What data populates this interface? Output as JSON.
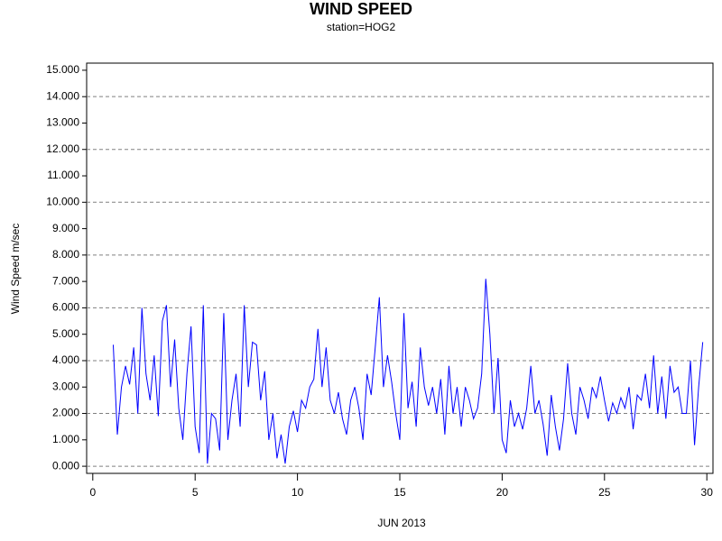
{
  "chart_data": {
    "type": "line",
    "title": "WIND SPEED",
    "subtitle": "station=HOG2",
    "x_label": "JUN 2013",
    "y_label": "Wind Speed m/sec",
    "xlim": [
      -0.3,
      30.3
    ],
    "xticks": [
      0,
      5,
      10,
      15,
      20,
      25,
      30
    ],
    "ylim": [
      -0.27,
      15.27
    ],
    "yticks": [
      {
        "value": 0,
        "label": "0.000"
      },
      {
        "value": 1,
        "label": "1.000"
      },
      {
        "value": 2,
        "label": "2.000"
      },
      {
        "value": 3,
        "label": "3.000"
      },
      {
        "value": 4,
        "label": "4.000"
      },
      {
        "value": 5,
        "label": "5.000"
      },
      {
        "value": 6,
        "label": "6.000"
      },
      {
        "value": 7,
        "label": "7.000"
      },
      {
        "value": 8,
        "label": "8.000"
      },
      {
        "value": 9,
        "label": "9.000"
      },
      {
        "value": 10,
        "label": "10.000"
      },
      {
        "value": 11,
        "label": "11.000"
      },
      {
        "value": 12,
        "label": "12.000"
      },
      {
        "value": 13,
        "label": "13.000"
      },
      {
        "value": 14,
        "label": "14.000"
      },
      {
        "value": 15,
        "label": "15.000"
      }
    ],
    "ygrid": [
      0,
      2,
      4,
      6,
      8,
      10,
      12,
      14
    ],
    "series": [
      {
        "name": "HOG2",
        "color": "#0000ff",
        "x": [
          1,
          1.2,
          1.4,
          1.6,
          1.8,
          2,
          2.2,
          2.4,
          2.6,
          2.8,
          3,
          3.2,
          3.4,
          3.6,
          3.8,
          4,
          4.2,
          4.4,
          4.6,
          4.8,
          5,
          5.2,
          5.4,
          5.6,
          5.8,
          6,
          6.2,
          6.4,
          6.6,
          6.8,
          7,
          7.2,
          7.4,
          7.6,
          7.8,
          8,
          8.2,
          8.4,
          8.6,
          8.8,
          9,
          9.2,
          9.4,
          9.6,
          9.8,
          10,
          10.2,
          10.4,
          10.6,
          10.8,
          11,
          11.2,
          11.4,
          11.6,
          11.8,
          12,
          12.2,
          12.4,
          12.6,
          12.8,
          13,
          13.2,
          13.4,
          13.6,
          13.8,
          14,
          14.2,
          14.4,
          14.6,
          14.8,
          15,
          15.2,
          15.4,
          15.6,
          15.8,
          16,
          16.2,
          16.4,
          16.6,
          16.8,
          17,
          17.2,
          17.4,
          17.6,
          17.8,
          18,
          18.2,
          18.4,
          18.6,
          18.8,
          19,
          19.2,
          19.4,
          19.6,
          19.8,
          20,
          20.2,
          20.4,
          20.6,
          20.8,
          21,
          21.2,
          21.4,
          21.6,
          21.8,
          22,
          22.2,
          22.4,
          22.6,
          22.8,
          23,
          23.2,
          23.4,
          23.6,
          23.8,
          24,
          24.2,
          24.4,
          24.6,
          24.8,
          25,
          25.2,
          25.4,
          25.6,
          25.8,
          26,
          26.2,
          26.4,
          26.6,
          26.8,
          27,
          27.2,
          27.4,
          27.6,
          27.8,
          28,
          28.2,
          28.4,
          28.6,
          28.8,
          29,
          29.2,
          29.4,
          29.6,
          29.8
        ],
        "values": [
          4.6,
          1.2,
          3.0,
          3.8,
          3.1,
          4.5,
          2.0,
          6.0,
          3.5,
          2.5,
          4.2,
          1.9,
          5.5,
          6.1,
          3.0,
          4.8,
          2.2,
          1.0,
          3.5,
          5.3,
          1.5,
          0.5,
          6.1,
          0.1,
          2.0,
          1.8,
          0.6,
          5.8,
          1.0,
          2.5,
          3.5,
          1.5,
          6.1,
          3.0,
          4.7,
          4.6,
          2.5,
          3.6,
          1.0,
          2.0,
          0.3,
          1.2,
          0.1,
          1.5,
          2.1,
          1.3,
          2.5,
          2.2,
          3.0,
          3.3,
          5.2,
          3.0,
          4.5,
          2.5,
          2.0,
          2.8,
          1.8,
          1.2,
          2.5,
          3.0,
          2.2,
          1.0,
          3.5,
          2.7,
          4.5,
          6.4,
          3.0,
          4.2,
          3.2,
          2.0,
          1.0,
          5.8,
          2.2,
          3.2,
          1.5,
          4.5,
          3.0,
          2.3,
          3.0,
          2.0,
          3.3,
          1.2,
          3.8,
          2.0,
          3.0,
          1.5,
          3.0,
          2.5,
          1.8,
          2.2,
          3.5,
          7.1,
          5.0,
          2.0,
          4.1,
          1.0,
          0.5,
          2.5,
          1.5,
          2.0,
          1.4,
          2.2,
          3.8,
          2.0,
          2.5,
          1.6,
          0.4,
          2.7,
          1.5,
          0.6,
          1.8,
          3.9,
          2.0,
          1.2,
          3.0,
          2.5,
          1.8,
          3.0,
          2.6,
          3.4,
          2.5,
          1.7,
          2.4,
          2.0,
          2.6,
          2.2,
          3.0,
          1.4,
          2.7,
          2.5,
          3.5,
          2.2,
          4.2,
          2.0,
          3.4,
          1.8,
          3.8,
          2.8,
          3.0,
          2.0,
          2.0,
          4.0,
          0.8,
          3.0,
          4.7
        ]
      }
    ]
  }
}
